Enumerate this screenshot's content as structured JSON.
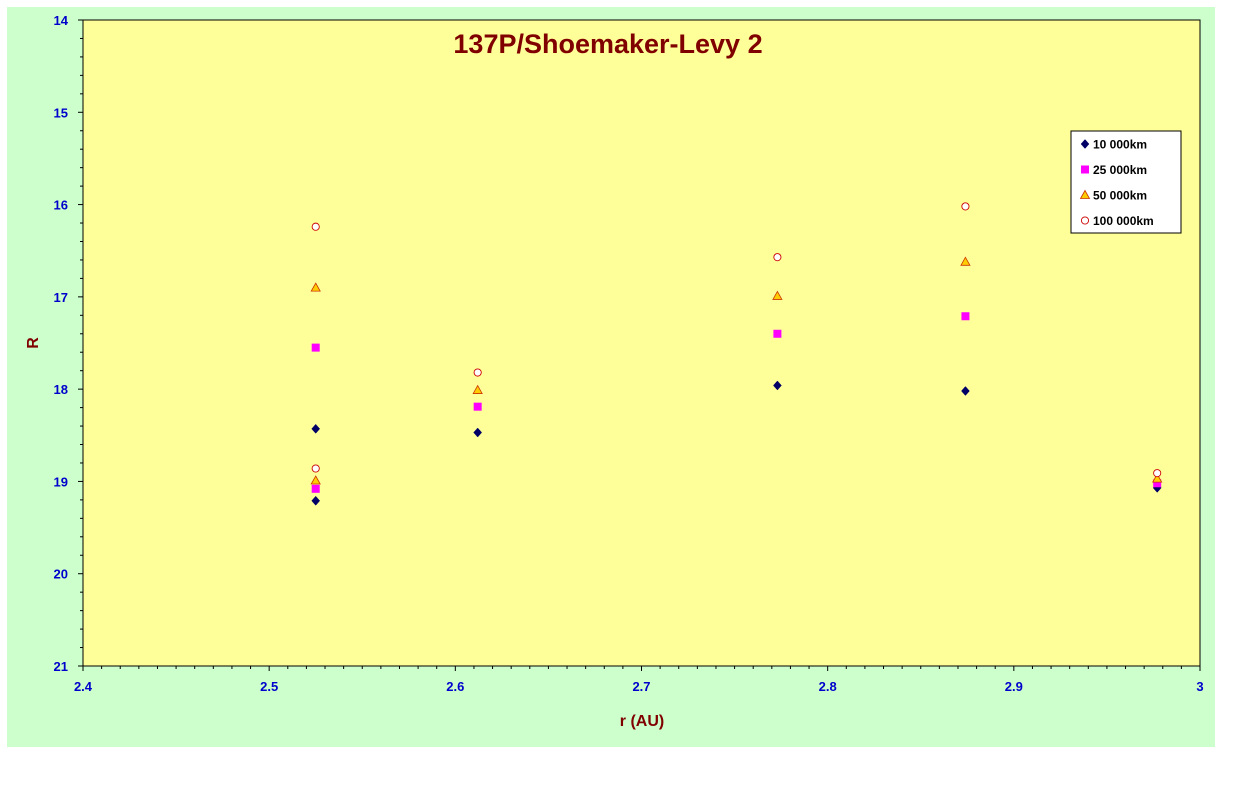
{
  "chart_data": {
    "type": "scatter",
    "title": "137P/Shoemaker-Levy 2",
    "xlabel": "r (AU)",
    "ylabel": "R",
    "xlim": [
      2.4,
      3.0
    ],
    "ylim": [
      14,
      21
    ],
    "y_inverted": true,
    "x_ticks": [
      "2.4",
      "2.5",
      "2.6",
      "2.7",
      "2.8",
      "2.9",
      "3"
    ],
    "y_ticks": [
      "14",
      "15",
      "16",
      "17",
      "18",
      "19",
      "20",
      "21"
    ],
    "grid": false,
    "legend_position": "top-right",
    "series": [
      {
        "name": "10 000km",
        "marker": "diamond",
        "color": "#000066",
        "x": [
          2.525,
          2.525,
          2.612,
          2.773,
          2.874,
          2.977
        ],
        "y": [
          18.43,
          19.21,
          18.47,
          17.96,
          18.02,
          19.07
        ]
      },
      {
        "name": "25 000km",
        "marker": "square",
        "color": "#ff00ff",
        "x": [
          2.525,
          2.525,
          2.612,
          2.773,
          2.874,
          2.977
        ],
        "y": [
          17.55,
          19.08,
          18.19,
          17.4,
          17.21,
          19.02
        ]
      },
      {
        "name": "50 000km",
        "marker": "triangle",
        "color": "#ffcc00",
        "x": [
          2.525,
          2.525,
          2.612,
          2.773,
          2.874,
          2.977
        ],
        "y": [
          16.9,
          18.99,
          18.01,
          16.99,
          16.62,
          18.97
        ]
      },
      {
        "name": "100 000km",
        "marker": "circle",
        "color": "#cc0000",
        "x": [
          2.525,
          2.525,
          2.612,
          2.773,
          2.874,
          2.977
        ],
        "y": [
          16.24,
          18.86,
          17.82,
          16.57,
          16.02,
          18.91
        ]
      }
    ]
  },
  "colors": {
    "outer_background": "#ccffcc",
    "plot_background": "#ffff99",
    "tick_label": "#0000cc",
    "title": "#800000"
  }
}
